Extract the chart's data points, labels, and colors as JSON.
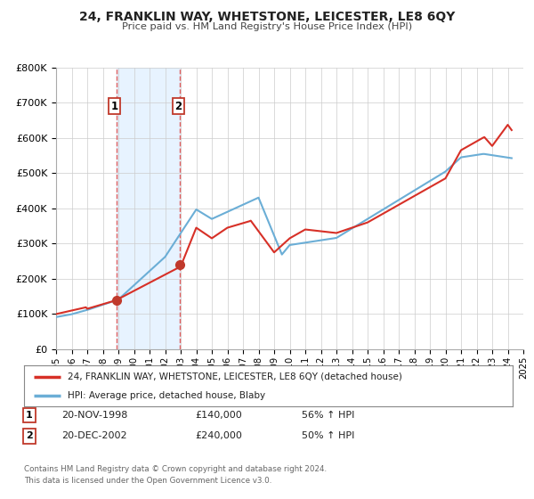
{
  "title": "24, FRANKLIN WAY, WHETSTONE, LEICESTER, LE8 6QY",
  "subtitle": "Price paid vs. HM Land Registry's House Price Index (HPI)",
  "legend_line1": "24, FRANKLIN WAY, WHETSTONE, LEICESTER, LE8 6QY (detached house)",
  "legend_line2": "HPI: Average price, detached house, Blaby",
  "footnote1": "Contains HM Land Registry data © Crown copyright and database right 2024.",
  "footnote2": "This data is licensed under the Open Government Licence v3.0.",
  "sale1_date": "20-NOV-1998",
  "sale1_price": "£140,000",
  "sale1_hpi": "56% ↑ HPI",
  "sale1_year": 1998.88,
  "sale1_value": 140000,
  "sale2_date": "20-DEC-2002",
  "sale2_price": "£240,000",
  "sale2_hpi": "50% ↑ HPI",
  "sale2_year": 2002.96,
  "sale2_value": 240000,
  "hpi_color": "#6baed6",
  "price_color": "#d73027",
  "marker_color": "#c0392b",
  "shade_color": "#ddeeff",
  "vline_color": "#e06060",
  "ylim_max": 800000,
  "xlim_min": 1995,
  "xlim_max": 2025,
  "background_color": "#ffffff",
  "grid_color": "#cccccc"
}
